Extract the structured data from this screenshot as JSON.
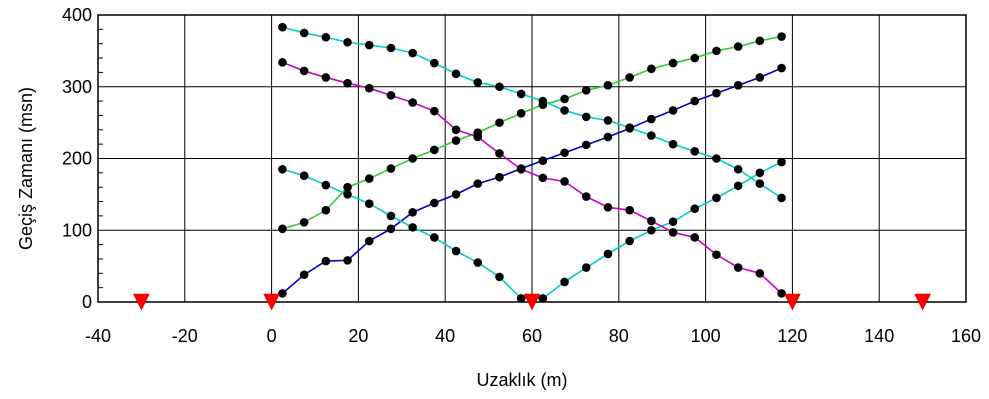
{
  "chart_data": {
    "type": "scatter",
    "title": "",
    "xlabel": "Uzaklık (m)",
    "ylabel": "Geçiş Zamanı (msn)",
    "xlim": [
      -40,
      160
    ],
    "ylim": [
      0,
      400
    ],
    "x_ticks": [
      "-40",
      "-20",
      "0",
      "20",
      "40",
      "60",
      "80",
      "100",
      "120",
      "140",
      "160"
    ],
    "y_ticks": [
      "0",
      "100",
      "200",
      "300",
      "400"
    ],
    "grid": true,
    "legend": "none",
    "markers": {
      "color": "#ff0000",
      "shape": "triangle-down",
      "x": [
        -30,
        0,
        60,
        120,
        150
      ],
      "y": [
        0,
        0,
        0,
        0,
        0
      ]
    },
    "point_color": "#000000",
    "series": [
      {
        "color": "#0000cc",
        "x": [
          2.5,
          7.5,
          12.5,
          17.5,
          22.5,
          27.5,
          32.5,
          37.5,
          42.5,
          47.5,
          52.5,
          57.5,
          62.5,
          67.5,
          72.5,
          77.5,
          82.5,
          87.5,
          92.5,
          97.5,
          102.5,
          107.5,
          112.5,
          117.5
        ],
        "y": [
          12,
          38,
          57,
          58,
          85,
          102,
          125,
          138,
          150,
          165,
          174,
          186,
          197,
          208,
          219,
          230,
          242,
          255,
          267,
          280,
          291,
          302,
          313,
          326
        ]
      },
      {
        "color": "#33cc33",
        "x": [
          2.5,
          7.5,
          12.5,
          17.5,
          22.5,
          27.5,
          32.5,
          37.5,
          42.5,
          47.5,
          52.5,
          57.5,
          62.5,
          67.5,
          72.5,
          77.5,
          82.5,
          87.5,
          92.5,
          97.5,
          102.5,
          107.5,
          112.5,
          117.5
        ],
        "y": [
          102,
          111,
          128,
          160,
          172,
          186,
          200,
          212,
          225,
          236,
          250,
          263,
          275,
          283,
          295,
          302,
          313,
          325,
          333,
          340,
          350,
          356,
          364,
          370
        ]
      },
      {
        "color": "#00cccc",
        "x": [
          2.5,
          7.5,
          12.5,
          17.5,
          22.5,
          27.5,
          32.5,
          37.5,
          42.5,
          47.5,
          52.5,
          57.5,
          62.5,
          67.5,
          72.5,
          77.5,
          82.5,
          87.5,
          92.5,
          97.5,
          102.5,
          107.5,
          112.5,
          117.5
        ],
        "y": [
          185,
          176,
          163,
          150,
          137,
          120,
          104,
          90,
          71,
          55,
          35,
          5,
          5,
          28,
          48,
          67,
          85,
          100,
          112,
          130,
          145,
          162,
          180,
          195
        ]
      },
      {
        "color": "#00cccc",
        "x": [
          2.5,
          7.5,
          12.5,
          17.5,
          22.5,
          27.5,
          32.5,
          37.5,
          42.5,
          47.5,
          52.5,
          57.5,
          62.5,
          67.5,
          72.5,
          77.5,
          82.5,
          87.5,
          92.5,
          97.5,
          102.5,
          107.5,
          112.5,
          117.5
        ],
        "y": [
          383,
          375,
          369,
          362,
          358,
          354,
          347,
          333,
          318,
          306,
          300,
          290,
          280,
          267,
          258,
          253,
          243,
          232,
          220,
          210,
          200,
          185,
          165,
          145
        ]
      },
      {
        "color": "#cc00cc",
        "x": [
          2.5,
          7.5,
          12.5,
          17.5,
          22.5,
          27.5,
          32.5,
          37.5,
          42.5,
          47.5,
          52.5,
          57.5,
          62.5,
          67.5,
          72.5,
          77.5,
          82.5,
          87.5,
          92.5,
          97.5,
          102.5,
          107.5,
          112.5,
          117.5
        ],
        "y": [
          334,
          322,
          313,
          305,
          298,
          288,
          278,
          266,
          240,
          230,
          207,
          185,
          173,
          168,
          147,
          132,
          128,
          113,
          97,
          90,
          66,
          48,
          40,
          12
        ]
      }
    ]
  }
}
